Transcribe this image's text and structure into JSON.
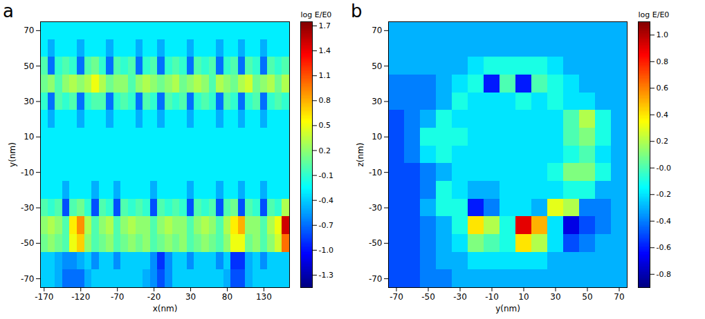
{
  "chart_data": [
    {
      "type": "heatmap",
      "panel_label": "a",
      "xlabel": "x(nm)",
      "ylabel": "y(nm)",
      "x": [
        -170,
        -160,
        -150,
        -140,
        -130,
        -120,
        -110,
        -100,
        -90,
        -80,
        -70,
        -60,
        -50,
        -40,
        -30,
        -20,
        -10,
        0,
        10,
        20,
        30,
        40,
        50,
        60,
        70,
        80,
        90,
        100,
        110,
        120,
        130,
        140,
        150,
        160
      ],
      "y": [
        70,
        60,
        50,
        40,
        30,
        20,
        10,
        0,
        -10,
        -20,
        -30,
        -40,
        -50,
        -60,
        -70
      ],
      "values": [
        [
          -0.3,
          -0.3,
          -0.3,
          -0.3,
          -0.3,
          -0.3,
          -0.3,
          -0.3,
          -0.3,
          -0.3,
          -0.3,
          -0.3,
          -0.3,
          -0.3,
          -0.3,
          -0.3,
          -0.3,
          -0.3,
          -0.3,
          -0.3,
          -0.3,
          -0.3,
          -0.3,
          -0.3,
          -0.3,
          -0.3,
          -0.3,
          -0.3,
          -0.3,
          -0.3,
          -0.3,
          -0.3,
          -0.3,
          -0.3
        ],
        [
          -0.3,
          -0.5,
          -0.3,
          -0.3,
          -0.3,
          -0.5,
          -0.3,
          -0.3,
          -0.3,
          -0.5,
          -0.3,
          -0.3,
          -0.3,
          -0.5,
          -0.3,
          -0.3,
          -0.5,
          -0.3,
          -0.3,
          -0.3,
          -0.5,
          -0.3,
          -0.3,
          -0.3,
          -0.5,
          -0.3,
          -0.3,
          -0.5,
          -0.3,
          -0.3,
          -0.5,
          -0.3,
          -0.3,
          -0.3
        ],
        [
          0.0,
          -0.7,
          -0.1,
          0.0,
          -0.1,
          -0.7,
          0.0,
          0.1,
          -0.1,
          -0.7,
          0.0,
          -0.1,
          0.0,
          -0.7,
          -0.1,
          0.0,
          -0.7,
          -0.1,
          0.0,
          -0.1,
          -0.7,
          0.0,
          -0.1,
          0.0,
          -0.7,
          -0.1,
          0.0,
          -0.7,
          0.0,
          -0.1,
          -0.7,
          0.0,
          -0.1,
          0.0
        ],
        [
          0.1,
          0.2,
          0.0,
          0.2,
          0.3,
          0.2,
          0.3,
          0.5,
          0.3,
          0.1,
          0.2,
          0.2,
          0.0,
          0.2,
          0.3,
          0.2,
          0.1,
          0.2,
          0.3,
          0.1,
          0.2,
          0.3,
          0.2,
          0.0,
          0.3,
          0.2,
          0.1,
          0.3,
          0.4,
          0.1,
          0.2,
          0.3,
          0.1,
          0.3
        ],
        [
          -0.1,
          -0.7,
          0.0,
          -0.1,
          0.0,
          -0.7,
          -0.1,
          0.0,
          0.0,
          -0.7,
          -0.1,
          0.0,
          -0.1,
          -0.7,
          0.0,
          -0.1,
          -0.7,
          0.0,
          -0.1,
          0.0,
          -0.7,
          -0.1,
          0.0,
          -0.1,
          -0.7,
          0.0,
          -0.1,
          -0.7,
          -0.1,
          0.0,
          -0.7,
          -0.1,
          0.0,
          -0.1
        ],
        [
          -0.3,
          -0.5,
          -0.3,
          -0.3,
          -0.3,
          -0.5,
          -0.3,
          -0.3,
          -0.3,
          -0.5,
          -0.3,
          -0.3,
          -0.3,
          -0.5,
          -0.3,
          -0.3,
          -0.5,
          -0.3,
          -0.3,
          -0.3,
          -0.5,
          -0.3,
          -0.3,
          -0.3,
          -0.5,
          -0.3,
          -0.3,
          -0.5,
          -0.3,
          -0.3,
          -0.5,
          -0.3,
          -0.3,
          -0.3
        ],
        [
          -0.3,
          -0.3,
          -0.3,
          -0.3,
          -0.3,
          -0.3,
          -0.3,
          -0.3,
          -0.3,
          -0.3,
          -0.3,
          -0.3,
          -0.3,
          -0.3,
          -0.3,
          -0.3,
          -0.3,
          -0.3,
          -0.3,
          -0.3,
          -0.3,
          -0.3,
          -0.3,
          -0.3,
          -0.3,
          -0.3,
          -0.3,
          -0.3,
          -0.3,
          -0.3,
          -0.3,
          -0.3,
          -0.3,
          -0.3
        ],
        [
          -0.3,
          -0.3,
          -0.3,
          -0.3,
          -0.3,
          -0.3,
          -0.3,
          -0.3,
          -0.3,
          -0.3,
          -0.3,
          -0.3,
          -0.3,
          -0.3,
          -0.3,
          -0.3,
          -0.3,
          -0.3,
          -0.3,
          -0.3,
          -0.3,
          -0.3,
          -0.3,
          -0.3,
          -0.3,
          -0.3,
          -0.3,
          -0.3,
          -0.3,
          -0.3,
          -0.3,
          -0.3,
          -0.3,
          -0.3
        ],
        [
          -0.3,
          -0.3,
          -0.3,
          -0.3,
          -0.3,
          -0.3,
          -0.3,
          -0.3,
          -0.3,
          -0.3,
          -0.3,
          -0.3,
          -0.3,
          -0.3,
          -0.3,
          -0.3,
          -0.3,
          -0.3,
          -0.3,
          -0.3,
          -0.3,
          -0.3,
          -0.3,
          -0.3,
          -0.3,
          -0.3,
          -0.3,
          -0.3,
          -0.3,
          -0.3,
          -0.3,
          -0.3,
          -0.3,
          -0.3
        ],
        [
          -0.3,
          -0.3,
          -0.3,
          -0.5,
          -0.3,
          -0.3,
          -0.3,
          -0.5,
          -0.3,
          -0.3,
          -0.5,
          -0.3,
          -0.3,
          -0.3,
          -0.3,
          -0.5,
          -0.3,
          -0.3,
          -0.3,
          -0.3,
          -0.5,
          -0.3,
          -0.3,
          -0.3,
          -0.5,
          -0.3,
          -0.3,
          -0.5,
          -0.3,
          -0.3,
          -0.5,
          -0.3,
          -0.3,
          -0.3
        ],
        [
          0.0,
          -0.1,
          0.0,
          -0.8,
          0.0,
          0.1,
          -0.1,
          -0.8,
          0.0,
          -0.1,
          -0.8,
          0.0,
          -0.1,
          0.0,
          -0.1,
          -0.8,
          0.0,
          -0.1,
          0.0,
          -0.1,
          -0.8,
          0.0,
          -0.1,
          0.0,
          -0.8,
          0.0,
          0.1,
          -0.8,
          0.0,
          -0.1,
          -0.8,
          0.0,
          -0.1,
          0.3
        ],
        [
          0.2,
          0.3,
          0.2,
          0.0,
          0.6,
          0.9,
          0.3,
          0.0,
          0.2,
          0.3,
          0.0,
          0.2,
          0.3,
          0.2,
          0.2,
          0.0,
          0.2,
          0.3,
          0.2,
          0.2,
          0.0,
          0.2,
          0.3,
          0.2,
          0.0,
          0.3,
          0.6,
          0.8,
          0.2,
          0.2,
          0.0,
          0.3,
          0.5,
          1.5
        ],
        [
          0.1,
          0.2,
          0.1,
          0.0,
          0.5,
          0.7,
          0.2,
          0.0,
          0.1,
          0.2,
          0.0,
          0.1,
          0.2,
          0.1,
          0.2,
          0.0,
          0.1,
          0.2,
          0.1,
          0.2,
          0.0,
          0.1,
          0.2,
          0.1,
          0.0,
          0.2,
          0.5,
          0.5,
          0.1,
          0.2,
          0.0,
          0.2,
          0.4,
          1.0
        ],
        [
          -0.4,
          -0.4,
          -0.5,
          -0.6,
          -0.6,
          -0.5,
          -0.4,
          -0.6,
          -0.4,
          -0.4,
          -0.6,
          -0.4,
          -0.4,
          -0.4,
          -0.4,
          -0.6,
          -0.9,
          -0.6,
          -0.4,
          -0.4,
          -0.6,
          -0.4,
          -0.4,
          -0.4,
          -0.6,
          -0.4,
          -0.9,
          -0.9,
          -0.5,
          -0.4,
          -0.6,
          -0.4,
          -0.4,
          -0.4
        ],
        [
          -0.4,
          -0.4,
          -0.5,
          -0.7,
          -0.7,
          -0.7,
          -0.5,
          -0.4,
          -0.4,
          -0.4,
          -0.4,
          -0.4,
          -0.4,
          -0.4,
          -0.5,
          -0.6,
          -0.8,
          -0.6,
          -0.4,
          -0.4,
          -0.4,
          -0.4,
          -0.4,
          -0.4,
          -0.4,
          -0.5,
          -0.8,
          -0.8,
          -0.5,
          -0.4,
          -0.4,
          -0.4,
          -0.4,
          -0.4
        ]
      ],
      "xlim": [
        -175,
        165
      ],
      "ylim": [
        -75,
        75
      ],
      "xticks": [
        -170,
        -120,
        -70,
        -20,
        30,
        80,
        130
      ],
      "yticks": [
        -70,
        -50,
        -30,
        -10,
        10,
        30,
        50,
        70
      ],
      "colorbar": {
        "label": "log E/E0",
        "range": [
          -1.45,
          1.75
        ],
        "ticks": [
          -1.3,
          {
            "value": -1,
            "label": "-1.0"
          },
          -0.7,
          -0.4,
          -0.1,
          0.2,
          0.5,
          0.8,
          1.1,
          1.4,
          1.7
        ]
      }
    },
    {
      "type": "heatmap",
      "panel_label": "b",
      "xlabel": "y(nm)",
      "ylabel": "z(nm)",
      "x": [
        -70,
        -60,
        -50,
        -40,
        -30,
        -20,
        -10,
        0,
        10,
        20,
        30,
        40,
        50,
        60,
        70
      ],
      "y": [
        70,
        60,
        50,
        40,
        30,
        20,
        10,
        0,
        -10,
        -20,
        -30,
        -40,
        -50,
        -60,
        -70
      ],
      "values": [
        [
          -0.3,
          -0.3,
          -0.3,
          -0.3,
          -0.3,
          -0.3,
          -0.3,
          -0.3,
          -0.3,
          -0.3,
          -0.3,
          -0.3,
          -0.3,
          -0.3,
          -0.3
        ],
        [
          -0.3,
          -0.3,
          -0.3,
          -0.3,
          -0.3,
          -0.3,
          -0.3,
          -0.3,
          -0.3,
          -0.3,
          -0.3,
          -0.3,
          -0.3,
          -0.3,
          -0.3
        ],
        [
          -0.3,
          -0.3,
          -0.3,
          -0.3,
          -0.3,
          -0.2,
          -0.1,
          -0.1,
          -0.1,
          -0.1,
          -0.2,
          -0.3,
          -0.3,
          -0.3,
          -0.3
        ],
        [
          -0.4,
          -0.4,
          -0.4,
          -0.3,
          -0.2,
          -0.1,
          -0.6,
          0.0,
          -0.6,
          0.0,
          -0.1,
          -0.2,
          -0.3,
          -0.3,
          -0.3
        ],
        [
          -0.4,
          -0.4,
          -0.4,
          -0.3,
          -0.1,
          -0.2,
          -0.2,
          -0.2,
          -0.1,
          -0.2,
          -0.1,
          -0.2,
          -0.2,
          -0.3,
          -0.3
        ],
        [
          -0.5,
          -0.4,
          -0.3,
          -0.1,
          -0.2,
          -0.2,
          -0.2,
          -0.2,
          -0.2,
          -0.2,
          -0.2,
          0.0,
          0.2,
          -0.1,
          -0.3
        ],
        [
          -0.5,
          -0.4,
          -0.1,
          -0.1,
          -0.1,
          -0.2,
          -0.2,
          -0.2,
          -0.2,
          -0.2,
          -0.2,
          0.0,
          0.1,
          -0.1,
          -0.3
        ],
        [
          -0.5,
          -0.4,
          -0.2,
          -0.1,
          -0.2,
          -0.2,
          -0.2,
          -0.2,
          -0.2,
          -0.2,
          -0.2,
          -0.1,
          0.0,
          -0.2,
          -0.3
        ],
        [
          -0.5,
          -0.5,
          -0.4,
          -0.3,
          -0.2,
          -0.2,
          -0.2,
          -0.2,
          -0.2,
          -0.2,
          -0.1,
          0.1,
          0.1,
          -0.1,
          -0.3
        ],
        [
          -0.5,
          -0.5,
          -0.4,
          -0.1,
          -0.2,
          -0.3,
          -0.3,
          -0.2,
          -0.2,
          -0.2,
          -0.2,
          -0.1,
          -0.1,
          -0.3,
          -0.3
        ],
        [
          -0.5,
          -0.5,
          -0.3,
          -0.1,
          -0.1,
          -0.6,
          -0.4,
          -0.2,
          -0.2,
          -0.3,
          0.3,
          0.2,
          -0.4,
          -0.4,
          -0.3
        ],
        [
          -0.5,
          -0.5,
          -0.4,
          -0.3,
          -0.1,
          0.4,
          0.2,
          -0.1,
          0.9,
          0.5,
          -0.2,
          -0.7,
          -0.5,
          -0.4,
          -0.3
        ],
        [
          -0.5,
          -0.5,
          -0.4,
          -0.3,
          -0.2,
          0.1,
          0.0,
          -0.1,
          0.4,
          0.2,
          -0.2,
          -0.5,
          -0.4,
          -0.3,
          -0.3
        ],
        [
          -0.5,
          -0.5,
          -0.4,
          -0.3,
          -0.3,
          -0.2,
          -0.2,
          -0.2,
          -0.2,
          -0.2,
          -0.3,
          -0.3,
          -0.3,
          -0.3,
          -0.3
        ],
        [
          -0.5,
          -0.5,
          -0.4,
          -0.4,
          -0.3,
          -0.3,
          -0.3,
          -0.3,
          -0.3,
          -0.3,
          -0.3,
          -0.3,
          -0.3,
          -0.3,
          -0.3
        ]
      ],
      "xlim": [
        -75,
        75
      ],
      "ylim": [
        -75,
        75
      ],
      "xticks": [
        -70,
        -50,
        -30,
        -10,
        10,
        30,
        50,
        70
      ],
      "yticks": [
        -70,
        -50,
        -30,
        -10,
        10,
        30,
        50,
        70
      ],
      "colorbar": {
        "label": "log E/E0",
        "range": [
          -0.9,
          1.1
        ],
        "ticks": [
          -0.8,
          -0.6,
          -0.4,
          -0.2,
          {
            "value": 0,
            "label": "-0.0"
          },
          0.2,
          0.4,
          0.6,
          0.8,
          {
            "value": 1,
            "label": "1.0"
          }
        ]
      }
    }
  ]
}
